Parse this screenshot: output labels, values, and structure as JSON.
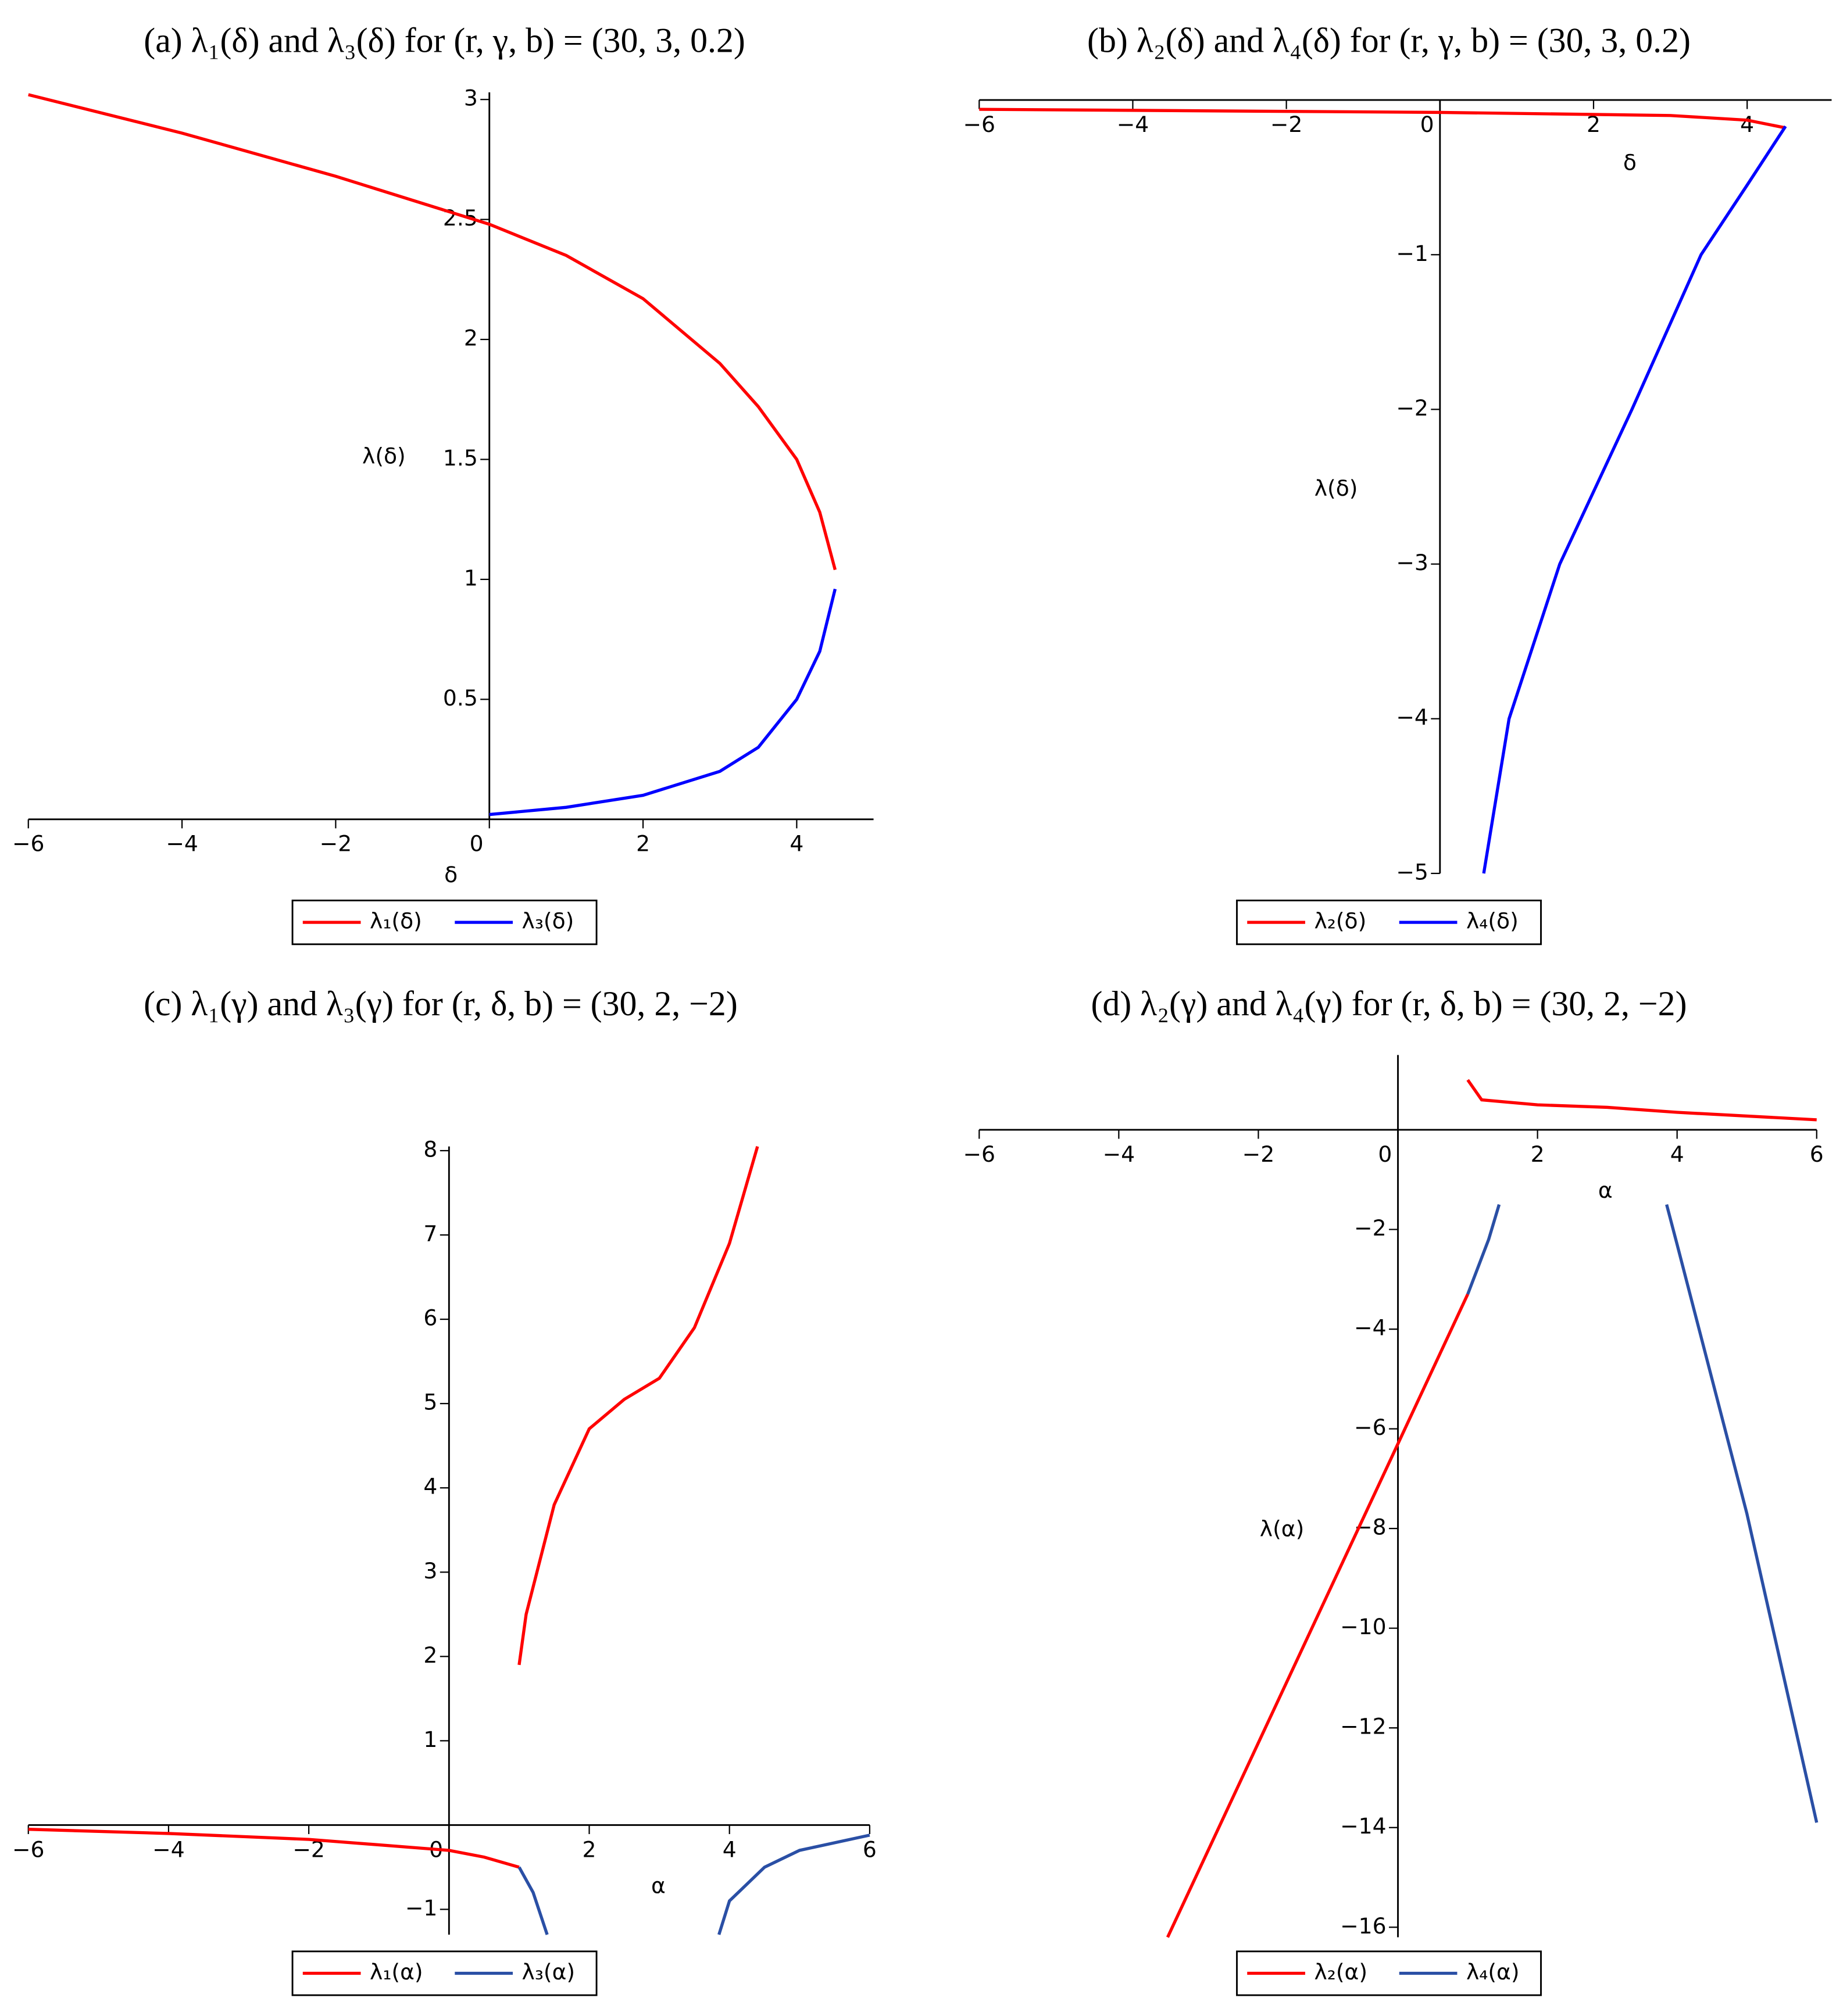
{
  "chart_data": [
    {
      "type": "line",
      "title": "(a) λ₁(δ) and λ₃(δ) for (r, γ, b) = (30, 3, 0.2)",
      "x_label": "δ",
      "y_label": "λ(δ)",
      "xlim": [
        -6,
        5
      ],
      "ylim": [
        0,
        3.03
      ],
      "xticks": [
        {
          "value": -6,
          "label": "−6"
        },
        {
          "value": -4,
          "label": "−4"
        },
        {
          "value": -2,
          "label": "−2"
        },
        0,
        2,
        4
      ],
      "yticks": [
        0.5,
        1,
        1.5,
        2,
        2.5,
        3
      ],
      "series": [
        {
          "name": "λ₁(δ)",
          "color": "#ff0000",
          "x": [
            -6,
            -4,
            -2,
            0,
            1,
            2,
            3,
            3.5,
            4,
            4.3,
            4.5
          ],
          "values": [
            3.02,
            2.86,
            2.68,
            2.48,
            2.35,
            2.17,
            1.9,
            1.72,
            1.5,
            1.28,
            1.04
          ]
        },
        {
          "name": "λ₃(δ)",
          "color": "#0000ff",
          "x": [
            0,
            1,
            2,
            3,
            3.5,
            4,
            4.3,
            4.5
          ],
          "values": [
            0.02,
            0.05,
            0.1,
            0.2,
            0.3,
            0.5,
            0.7,
            0.96
          ]
        }
      ]
    },
    {
      "type": "line",
      "title": "(b) λ₂(δ) and λ₄(δ) for (r, γ, b) = (30, 3, 0.2)",
      "x_label": "δ",
      "y_label": "λ(δ)",
      "xlim": [
        -6,
        5.1
      ],
      "ylim": [
        -5,
        0
      ],
      "xticks": [
        {
          "value": -6,
          "label": "−6"
        },
        {
          "value": -4,
          "label": "−4"
        },
        {
          "value": -2,
          "label": "−2"
        },
        0,
        2,
        4
      ],
      "yticks": [
        {
          "value": -5,
          "label": "−5"
        },
        {
          "value": -4,
          "label": "−4"
        },
        {
          "value": -3,
          "label": "−3"
        },
        {
          "value": -2,
          "label": "−2"
        },
        {
          "value": -1,
          "label": "−1"
        }
      ],
      "series": [
        {
          "name": "λ₂(δ)",
          "color": "#ff0000",
          "x": [
            -6,
            0,
            3,
            4,
            4.5
          ],
          "values": [
            -0.06,
            -0.08,
            -0.1,
            -0.13,
            -0.18
          ]
        },
        {
          "name": "λ₄(δ)",
          "color": "#0000ff",
          "x": [
            4.5,
            4,
            3.4,
            2.5,
            1.56,
            0.9,
            0.57
          ],
          "values": [
            -0.17,
            -0.55,
            -1,
            -2,
            -3,
            -4,
            -5
          ]
        }
      ]
    },
    {
      "type": "line",
      "title": "(c) λ₁(γ) and λ₃(γ) for (r, δ, b) = (30, 2, −2)",
      "x_label": "α",
      "xlim": [
        -6,
        6
      ],
      "ylim": [
        -1.3,
        8.05
      ],
      "xticks": [
        {
          "value": -6,
          "label": "−6"
        },
        {
          "value": -4,
          "label": "−4"
        },
        {
          "value": -2,
          "label": "−2"
        },
        0,
        2,
        4,
        6
      ],
      "yticks": [
        {
          "value": -1,
          "label": "−1"
        },
        1,
        2,
        3,
        4,
        5,
        6,
        7,
        8
      ],
      "series": [
        {
          "name": "λ₁(α)",
          "color": "#ff0000",
          "x": [
            -6,
            -4,
            -2,
            0,
            0.5,
            1,
            null,
            1,
            1.1,
            1.5,
            2,
            2.5,
            3,
            3.5,
            4,
            4.4
          ],
          "values": [
            -0.05,
            -0.1,
            -0.17,
            -0.3,
            -0.38,
            -0.5,
            null,
            1.9,
            2.5,
            3.8,
            4.7,
            5.05,
            5.3,
            5.9,
            6.9,
            8.05
          ]
        },
        {
          "name": "λ₃(α)",
          "color": "#2a4fa5",
          "x": [
            1,
            1.2,
            1.4,
            null,
            3.85,
            4,
            4.5,
            5,
            6
          ],
          "values": [
            -0.5,
            -0.8,
            -1.3,
            null,
            -1.3,
            -0.9,
            -0.5,
            -0.3,
            -0.12
          ]
        }
      ]
    },
    {
      "type": "line",
      "title": "(d) λ₂(γ) and λ₄(γ) for (r, δ, b) = (30, 2, −2)",
      "x_label": "α",
      "y_label": "λ(α)",
      "xlim": [
        -6,
        6
      ],
      "ylim": [
        -16.2,
        1.5
      ],
      "xticks": [
        {
          "value": -6,
          "label": "−6"
        },
        {
          "value": -4,
          "label": "−4"
        },
        {
          "value": -2,
          "label": "−2"
        },
        0,
        2,
        4,
        6
      ],
      "yticks": [
        {
          "value": -16,
          "label": "−16"
        },
        {
          "value": -14,
          "label": "−14"
        },
        {
          "value": -12,
          "label": "−12"
        },
        {
          "value": -10,
          "label": "−10"
        },
        {
          "value": -8,
          "label": "−8"
        },
        {
          "value": -6,
          "label": "−6"
        },
        {
          "value": -4,
          "label": "−4"
        },
        {
          "value": -2,
          "label": "−2"
        }
      ],
      "series": [
        {
          "name": "λ₂(α)",
          "color": "#ff0000",
          "x": [
            1,
            1.2,
            2,
            3,
            4,
            6,
            null,
            -3.3,
            1
          ],
          "values": [
            1,
            0.6,
            0.5,
            0.45,
            0.35,
            0.2,
            null,
            -16.2,
            -3.3
          ]
        },
        {
          "name": "λ₄(α)",
          "color": "#2a4fa5",
          "x": [
            1,
            1.3,
            1.45,
            null,
            3.85,
            4,
            5,
            6
          ],
          "values": [
            -3.3,
            -2.2,
            -1.5,
            null,
            -1.5,
            -2.3,
            -7.7,
            -13.9
          ]
        }
      ]
    }
  ]
}
